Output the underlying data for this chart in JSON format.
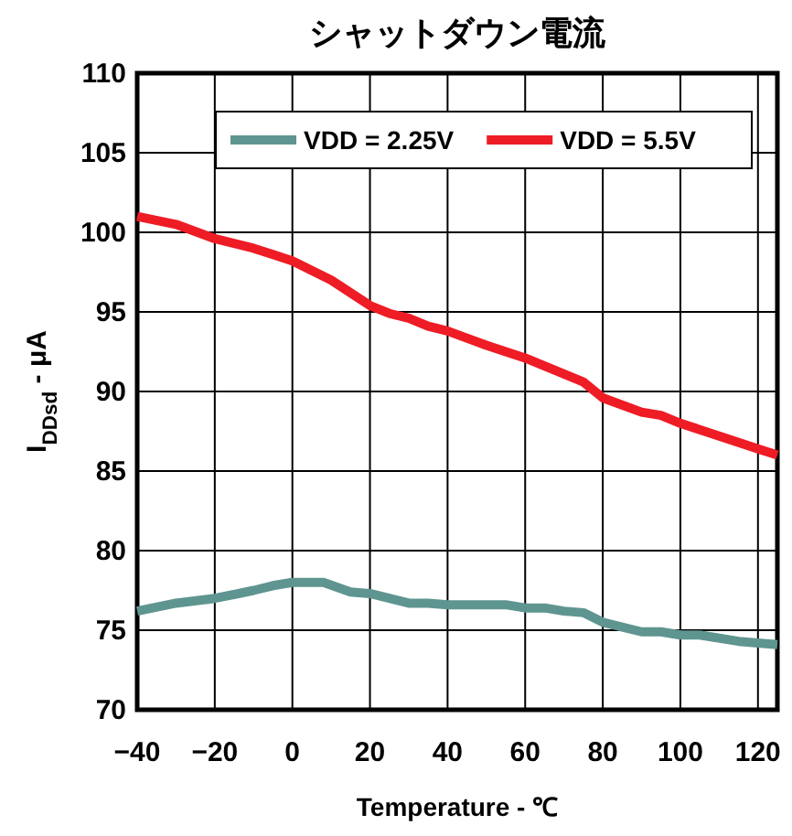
{
  "chart_data": {
    "type": "line",
    "title": "シャットダウン電流",
    "xlabel": "Temperature - ℃",
    "ylabel": "I$_{DDsd}$ - μA",
    "xlim": [
      -40,
      125
    ],
    "ylim": [
      70,
      110
    ],
    "xticks": [
      {
        "value": -40,
        "label": "−40"
      },
      {
        "value": -20,
        "label": "−20"
      },
      0,
      20,
      40,
      60,
      80,
      100,
      120
    ],
    "yticks": [
      70,
      75,
      80,
      85,
      90,
      95,
      100,
      105,
      110
    ],
    "grid": true,
    "legend": "top right",
    "line_style": "solid",
    "marker": "none",
    "series": [
      {
        "name": "VDD = 2.25V",
        "color": "#5f9590",
        "x": [
          -40,
          -30,
          -20,
          -10,
          -5,
          0,
          5,
          8,
          15,
          20,
          30,
          35,
          40,
          55,
          60,
          65,
          70,
          75,
          80,
          90,
          95,
          100,
          105,
          115,
          125
        ],
        "values": [
          76.2,
          76.7,
          77.0,
          77.5,
          77.8,
          78.0,
          78.0,
          78.0,
          77.4,
          77.3,
          76.7,
          76.7,
          76.6,
          76.6,
          76.4,
          76.4,
          76.2,
          76.1,
          75.5,
          74.9,
          74.9,
          74.7,
          74.7,
          74.3,
          74.1
        ]
      },
      {
        "name": "VDD = 5.5V",
        "color": "#ee1c25",
        "x": [
          -40,
          -30,
          -20,
          -10,
          -5,
          0,
          10,
          20,
          25,
          30,
          35,
          40,
          50,
          60,
          70,
          75,
          80,
          90,
          95,
          100,
          110,
          120,
          125
        ],
        "values": [
          101.0,
          100.5,
          99.6,
          99.0,
          98.6,
          98.2,
          97.0,
          95.4,
          94.9,
          94.6,
          94.1,
          93.8,
          92.9,
          92.1,
          91.1,
          90.6,
          89.6,
          88.7,
          88.5,
          88.0,
          87.2,
          86.4,
          86.0
        ]
      }
    ]
  }
}
